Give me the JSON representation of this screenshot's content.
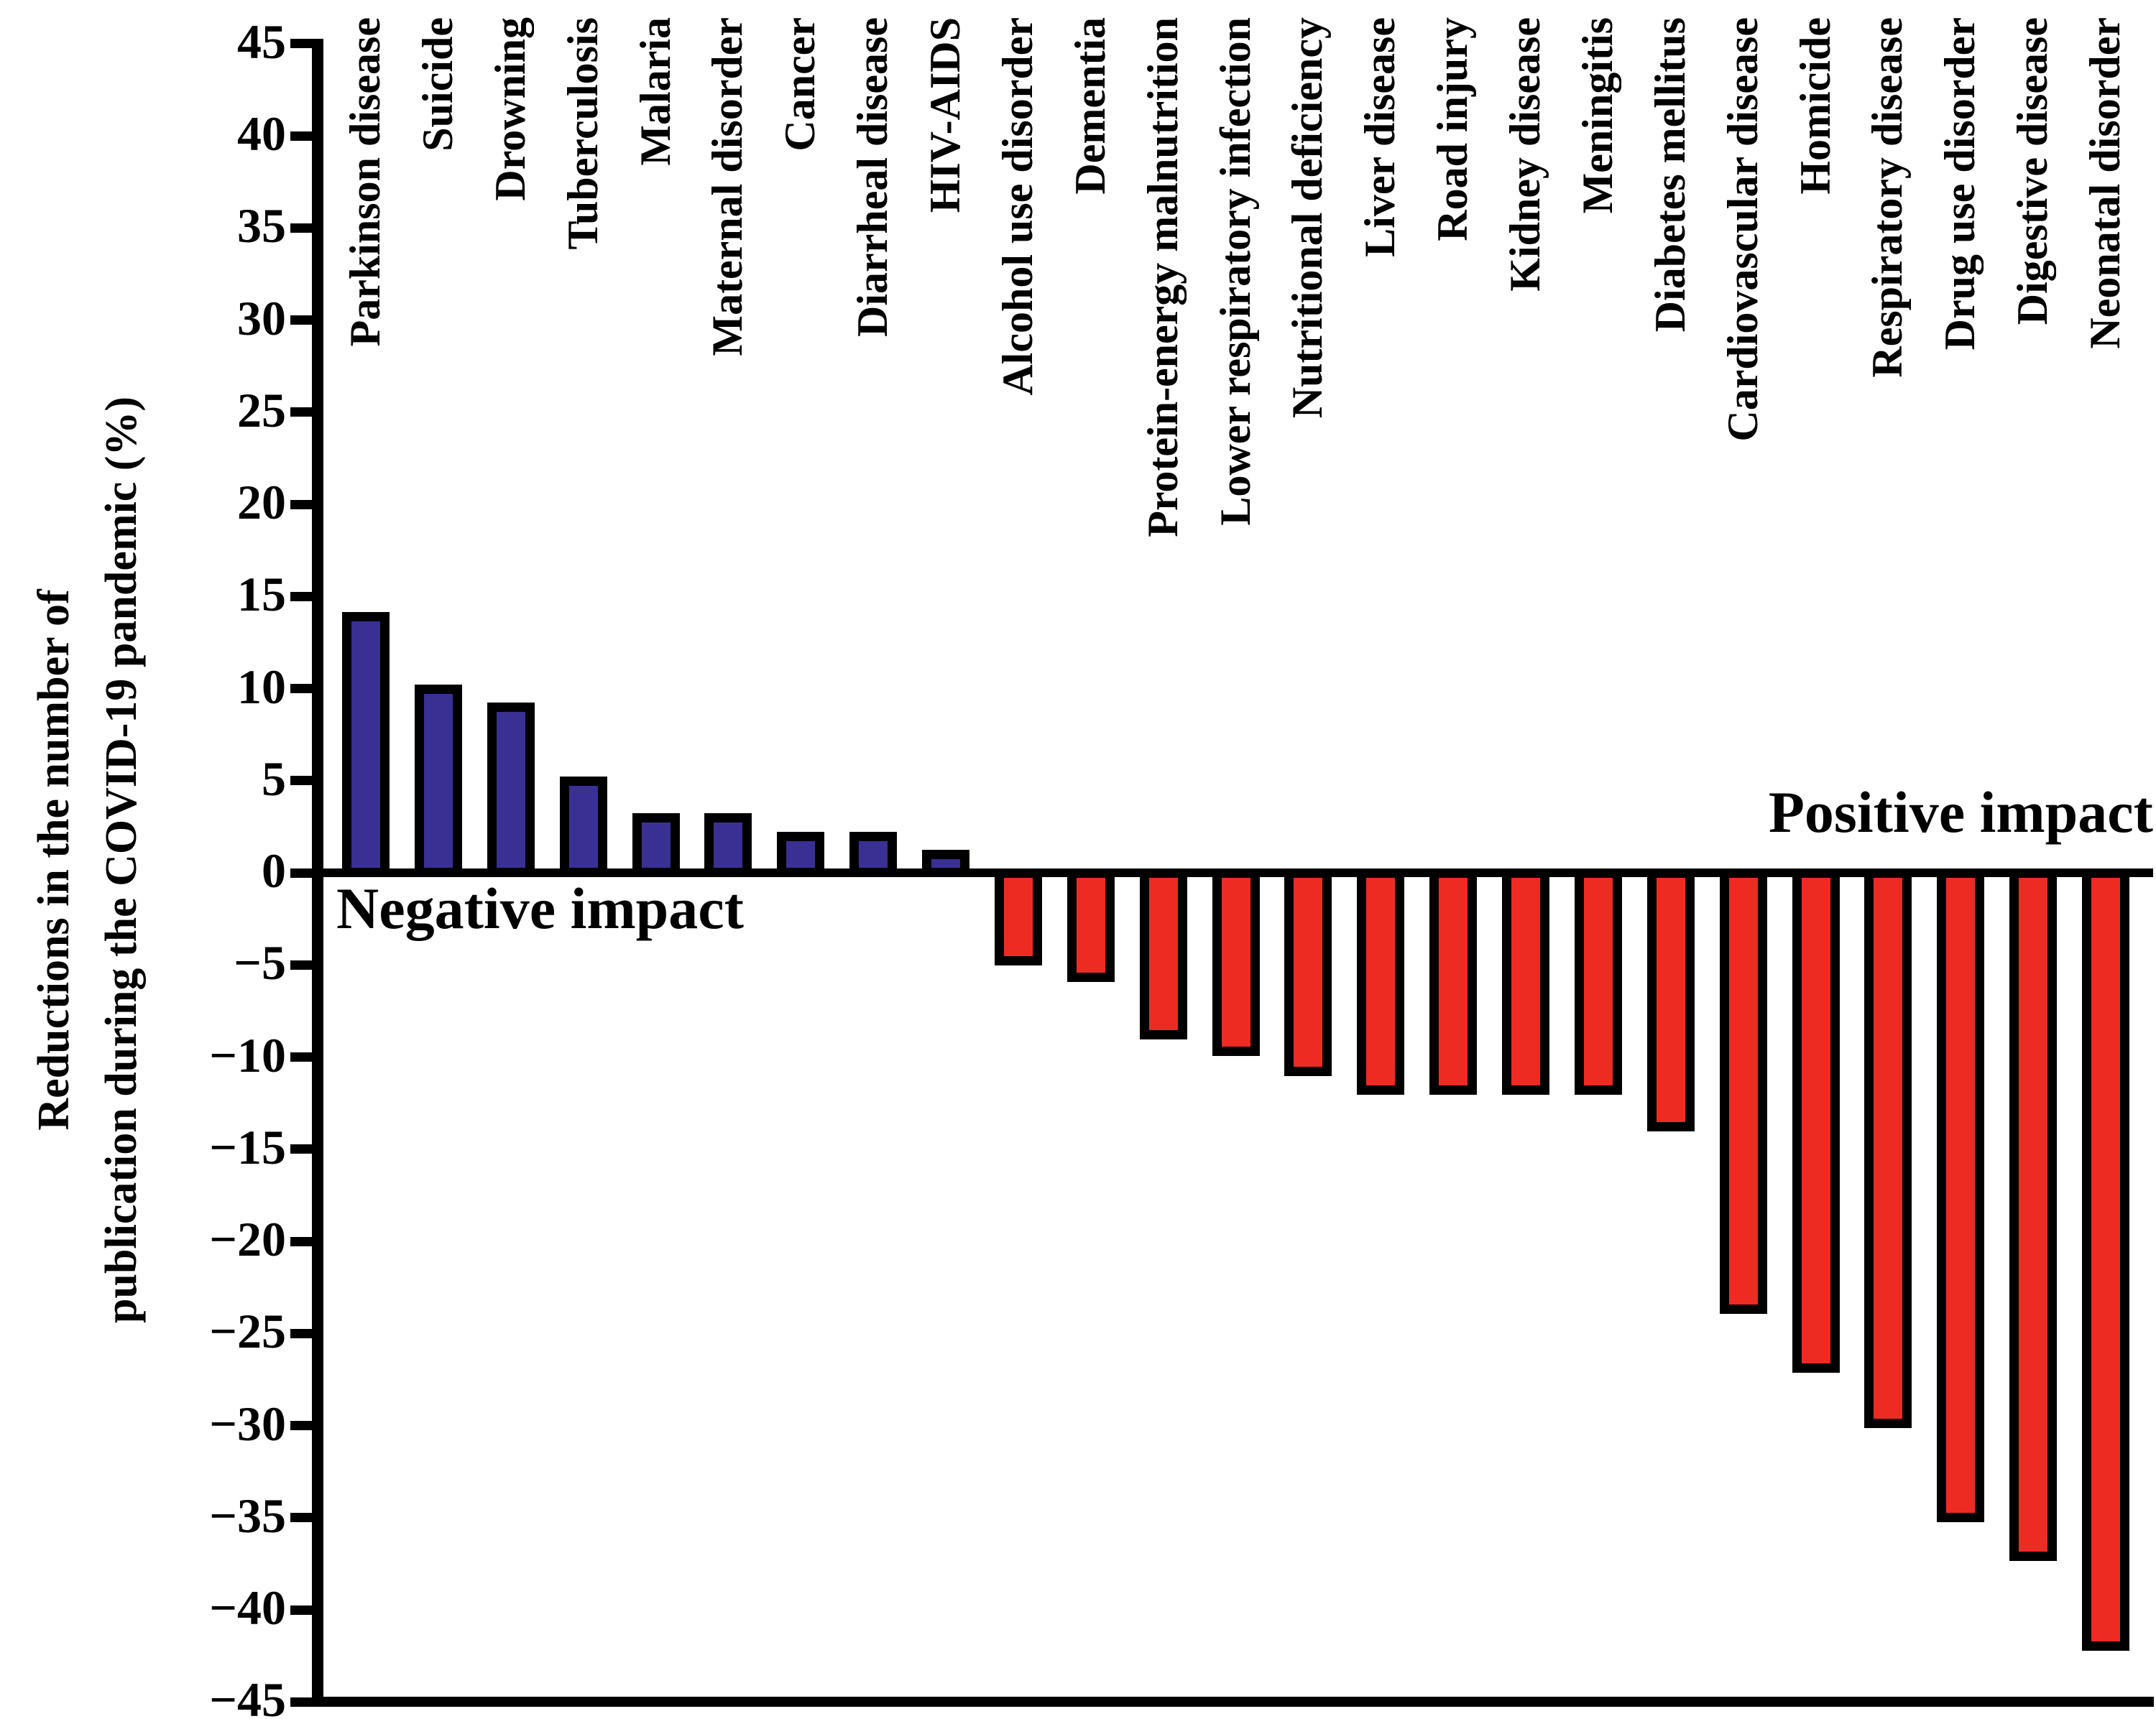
{
  "figure": {
    "negative_impact_label": "Negative impact",
    "positive_impact_label": "Positive impact"
  },
  "chart_data": {
    "type": "bar",
    "title": "",
    "ylabel_line1": "Reductions in the number of",
    "ylabel_line2": "publication during the COVID-19 pandemic (%)",
    "xlabel": "",
    "ylim": [
      -45,
      45
    ],
    "ytick_labels": [
      "45",
      "40",
      "35",
      "30",
      "25",
      "20",
      "15",
      "10",
      "5",
      "0",
      "−5",
      "−10",
      "−15",
      "−20",
      "−25",
      "−30",
      "−35",
      "−40",
      "−45"
    ],
    "ytick_values": [
      45,
      40,
      35,
      30,
      25,
      20,
      15,
      10,
      5,
      0,
      -5,
      -10,
      -15,
      -20,
      -25,
      -30,
      -35,
      -40,
      -45
    ],
    "grid": false,
    "legend": false,
    "categories": [
      "Parkinson disease",
      "Suicide",
      "Drowning",
      "Tuberculosis",
      "Malaria",
      "Maternal disorder",
      "Cancer",
      "Diarrheal disease",
      "HIV-AIDS",
      "Alcohol use disorder",
      "Dementia",
      "Protein-energy malnutrition",
      "Lower respiratory infection",
      "Nutritional deficiency",
      "Liver disease",
      "Road injury",
      "Kidney disease",
      "Meningitis",
      "Diabetes mellitus",
      "Cardiovascular disease",
      "Homicide",
      "Respiratory disease",
      "Drug use disorder",
      "Digestive disease",
      "Neonatal disorder"
    ],
    "values": [
      13.9,
      10.0,
      9.0,
      5.0,
      3.0,
      3.0,
      2.0,
      2.0,
      1.0,
      -4.8,
      -5.7,
      -8.8,
      -9.7,
      -10.8,
      -11.8,
      -11.8,
      -11.8,
      -11.8,
      -13.8,
      -23.7,
      -26.9,
      -29.9,
      -35.0,
      -37.1,
      -42.0
    ],
    "colors": {
      "positive_bar_fill": "#3A3093",
      "negative_bar_fill": "#EE2B23",
      "bar_stroke": "#000000",
      "axis": "#000000",
      "text": "#000000",
      "background": "#FFFFFF"
    }
  }
}
